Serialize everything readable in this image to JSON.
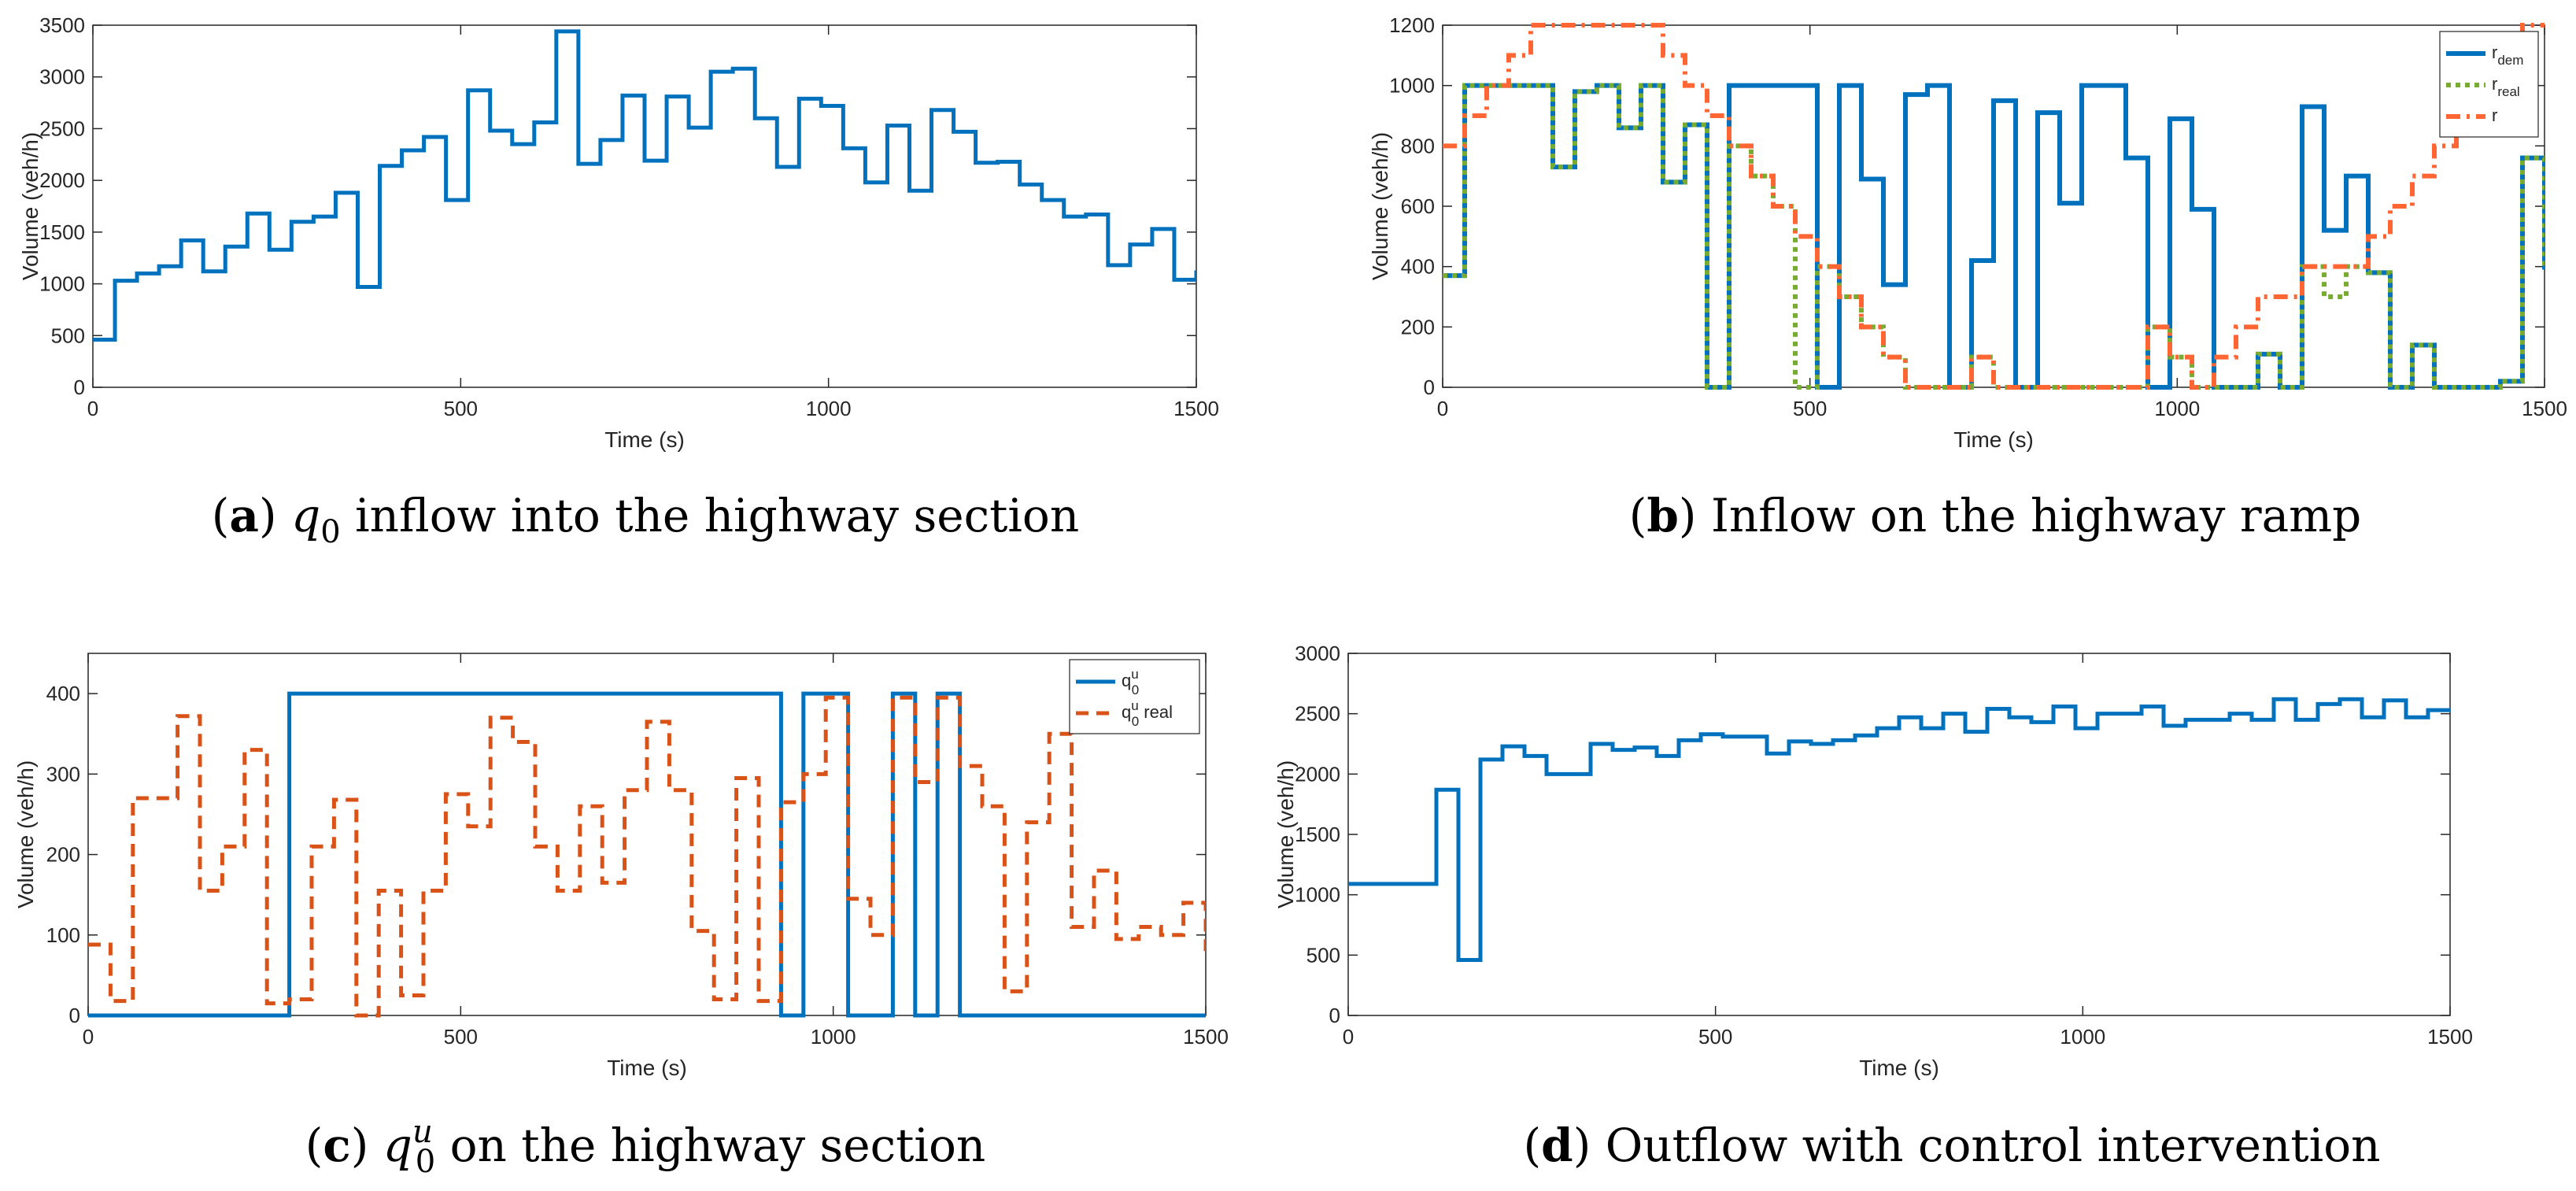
{
  "chart_data": [
    {
      "id": "a",
      "type": "line",
      "caption": {
        "label": "a",
        "math": "q",
        "sub": "0",
        "sup": "",
        "text": " inflow into the highway section"
      },
      "xlabel": "Time (s)",
      "ylabel": "Volume (veh/h)",
      "xlim": [
        0,
        1500
      ],
      "ylim": [
        0,
        3500
      ],
      "xticks": [
        0,
        500,
        1000,
        1500
      ],
      "yticks": [
        0,
        500,
        1000,
        1500,
        2000,
        2500,
        3000,
        3500
      ],
      "legend": null,
      "series": [
        {
          "name": "q0",
          "color": "#0072BD",
          "dash": "solid",
          "width": 5,
          "step": true,
          "x": [
            0,
            30,
            60,
            90,
            120,
            150,
            180,
            210,
            240,
            270,
            300,
            330,
            360,
            390,
            420,
            450,
            480,
            510,
            540,
            570,
            600,
            630,
            660,
            690,
            720,
            750,
            780,
            810,
            840,
            870,
            900,
            930,
            960,
            990,
            1020,
            1050,
            1080,
            1110,
            1140,
            1170,
            1200,
            1230,
            1260,
            1290,
            1320,
            1350,
            1380,
            1410,
            1440,
            1470,
            1500
          ],
          "y": [
            460,
            1030,
            1100,
            1170,
            1420,
            1120,
            1360,
            1680,
            1330,
            1600,
            1650,
            1880,
            970,
            2140,
            2290,
            2420,
            1810,
            2870,
            2480,
            2350,
            2560,
            3440,
            2160,
            2390,
            2820,
            2190,
            2810,
            2510,
            3050,
            3080,
            2600,
            2130,
            2790,
            2720,
            2310,
            1980,
            2530,
            1900,
            2680,
            2470,
            2170,
            2180,
            1960,
            1810,
            1650,
            1670,
            1180,
            1380,
            1530,
            1040,
            1130
          ]
        }
      ]
    },
    {
      "id": "b",
      "type": "line",
      "caption": {
        "label": "b",
        "math": "",
        "sub": "",
        "sup": "",
        "text": "Inflow on the highway ramp"
      },
      "xlabel": "Time (s)",
      "ylabel": "Volume (veh/h)",
      "xlim": [
        0,
        1500
      ],
      "ylim": [
        0,
        1200
      ],
      "xticks": [
        0,
        500,
        1000,
        1500
      ],
      "yticks": [
        0,
        200,
        400,
        600,
        800,
        1000,
        1200
      ],
      "legend": {
        "position": "top-right",
        "entries": [
          {
            "base": "r",
            "sub": "dem"
          },
          {
            "base": "r",
            "sub": "real"
          },
          {
            "base": "r",
            "sub": ""
          }
        ]
      },
      "series": [
        {
          "name": "r_dem",
          "color": "#0072BD",
          "dash": "solid",
          "width": 6,
          "step": true,
          "x": [
            0,
            30,
            60,
            90,
            120,
            150,
            180,
            210,
            240,
            270,
            300,
            330,
            360,
            390,
            420,
            450,
            480,
            510,
            540,
            570,
            600,
            630,
            660,
            690,
            720,
            750,
            780,
            810,
            840,
            870,
            900,
            930,
            960,
            990,
            1020,
            1050,
            1080,
            1110,
            1140,
            1170,
            1200,
            1230,
            1260,
            1290,
            1320,
            1350,
            1380,
            1410,
            1440,
            1470,
            1500
          ],
          "y": [
            370,
            1000,
            1000,
            1000,
            1000,
            730,
            980,
            1000,
            860,
            1000,
            680,
            870,
            0,
            1000,
            1000,
            1000,
            1000,
            0,
            1000,
            690,
            340,
            970,
            1000,
            0,
            420,
            950,
            0,
            910,
            610,
            1000,
            1000,
            760,
            0,
            890,
            590,
            0,
            0,
            110,
            0,
            930,
            520,
            700,
            380,
            0,
            140,
            0,
            0,
            0,
            20,
            760,
            390
          ]
        },
        {
          "name": "r_real",
          "color": "#77AC30",
          "dash": "dot",
          "width": 6,
          "step": true,
          "x": [
            0,
            30,
            60,
            90,
            120,
            150,
            180,
            210,
            240,
            270,
            300,
            330,
            360,
            390,
            420,
            450,
            480,
            510,
            540,
            570,
            600,
            630,
            660,
            690,
            720,
            750,
            780,
            810,
            840,
            870,
            900,
            930,
            960,
            990,
            1020,
            1050,
            1080,
            1110,
            1140,
            1170,
            1200,
            1230,
            1260,
            1290,
            1320,
            1350,
            1380,
            1410,
            1440,
            1470,
            1500
          ],
          "y": [
            370,
            1000,
            1000,
            1000,
            1000,
            730,
            980,
            1000,
            860,
            1000,
            680,
            870,
            0,
            800,
            700,
            600,
            0,
            400,
            300,
            200,
            100,
            0,
            0,
            0,
            100,
            0,
            0,
            0,
            0,
            0,
            0,
            0,
            200,
            100,
            0,
            0,
            0,
            110,
            0,
            400,
            300,
            400,
            380,
            0,
            140,
            0,
            0,
            0,
            20,
            760,
            390
          ]
        },
        {
          "name": "r",
          "color": "#FF6633",
          "dash": "dashdot",
          "width": 6,
          "step": true,
          "x": [
            0,
            30,
            60,
            90,
            120,
            150,
            180,
            210,
            240,
            270,
            300,
            330,
            360,
            390,
            420,
            450,
            480,
            510,
            540,
            570,
            600,
            630,
            660,
            690,
            720,
            750,
            780,
            810,
            840,
            870,
            900,
            930,
            960,
            990,
            1020,
            1050,
            1080,
            1110,
            1140,
            1170,
            1200,
            1230,
            1260,
            1290,
            1320,
            1350,
            1380,
            1410,
            1440,
            1470,
            1500
          ],
          "y": [
            800,
            900,
            1000,
            1100,
            1200,
            1200,
            1200,
            1200,
            1200,
            1200,
            1100,
            1000,
            900,
            800,
            700,
            600,
            500,
            400,
            300,
            200,
            100,
            0,
            0,
            0,
            100,
            0,
            0,
            0,
            0,
            0,
            0,
            0,
            200,
            100,
            0,
            100,
            200,
            300,
            300,
            400,
            400,
            400,
            500,
            600,
            700,
            800,
            900,
            1000,
            1100,
            1200,
            1200
          ]
        }
      ]
    },
    {
      "id": "c",
      "type": "line",
      "caption": {
        "label": "c",
        "math": "q",
        "sub": "0",
        "sup": "u",
        "text": " on the highway section"
      },
      "xlabel": "Time (s)",
      "ylabel": "Volume (veh/h)",
      "xlim": [
        0,
        1500
      ],
      "ylim": [
        0,
        450
      ],
      "xticks": [
        0,
        500,
        1000,
        1500
      ],
      "yticks": [
        0,
        100,
        200,
        300,
        400
      ],
      "legend": {
        "position": "top-right",
        "entries": [
          {
            "base": "q",
            "sub": "0",
            "sup": "u",
            "tail": ""
          },
          {
            "base": "q",
            "sub": "0",
            "sup": "u",
            "tail": " real"
          }
        ]
      },
      "series": [
        {
          "name": "q0u",
          "color": "#0072BD",
          "dash": "solid",
          "width": 5,
          "step": true,
          "x": [
            0,
            270,
            930,
            960,
            1020,
            1080,
            1110,
            1140,
            1170,
            1500
          ],
          "y": [
            0,
            400,
            0,
            400,
            0,
            400,
            0,
            400,
            0,
            0
          ]
        },
        {
          "name": "q0u real",
          "color": "#D95319",
          "dash": "dash",
          "width": 5,
          "step": true,
          "x": [
            0,
            30,
            60,
            90,
            120,
            150,
            180,
            210,
            240,
            270,
            300,
            330,
            360,
            390,
            420,
            450,
            480,
            510,
            540,
            570,
            600,
            630,
            660,
            690,
            720,
            750,
            780,
            810,
            840,
            870,
            900,
            930,
            960,
            990,
            1020,
            1050,
            1080,
            1110,
            1140,
            1170,
            1200,
            1230,
            1260,
            1290,
            1320,
            1350,
            1380,
            1410,
            1440,
            1470,
            1500
          ],
          "y": [
            88,
            18,
            270,
            270,
            372,
            155,
            210,
            330,
            15,
            20,
            210,
            268,
            0,
            155,
            25,
            155,
            275,
            235,
            370,
            340,
            210,
            155,
            260,
            165,
            280,
            365,
            280,
            105,
            20,
            295,
            18,
            265,
            300,
            395,
            145,
            100,
            395,
            290,
            395,
            310,
            260,
            30,
            240,
            350,
            110,
            180,
            95,
            110,
            100,
            140,
            80
          ]
        }
      ]
    },
    {
      "id": "d",
      "type": "line",
      "caption": {
        "label": "d",
        "math": "",
        "sub": "",
        "sup": "",
        "text": "Outflow with control intervention"
      },
      "xlabel": "Time (s)",
      "ylabel": "Volume (veh/h)",
      "xlim": [
        0,
        1500
      ],
      "ylim": [
        0,
        3000
      ],
      "xticks": [
        0,
        500,
        1000,
        1500
      ],
      "yticks": [
        0,
        500,
        1000,
        1500,
        2000,
        2500,
        3000
      ],
      "legend": null,
      "series": [
        {
          "name": "outflow",
          "color": "#0072BD",
          "dash": "solid",
          "width": 5,
          "step": true,
          "x": [
            0,
            120,
            150,
            180,
            210,
            240,
            270,
            300,
            330,
            360,
            390,
            420,
            450,
            480,
            510,
            540,
            570,
            600,
            630,
            660,
            690,
            720,
            750,
            780,
            810,
            840,
            870,
            900,
            930,
            960,
            990,
            1020,
            1050,
            1080,
            1110,
            1140,
            1170,
            1200,
            1230,
            1260,
            1290,
            1320,
            1350,
            1380,
            1410,
            1440,
            1470,
            1500
          ],
          "y": [
            1090,
            1870,
            460,
            2120,
            2230,
            2150,
            2000,
            2000,
            2250,
            2200,
            2220,
            2150,
            2280,
            2330,
            2310,
            2310,
            2170,
            2270,
            2250,
            2280,
            2320,
            2380,
            2470,
            2380,
            2500,
            2350,
            2540,
            2470,
            2430,
            2560,
            2380,
            2500,
            2500,
            2560,
            2400,
            2450,
            2450,
            2500,
            2450,
            2620,
            2450,
            2580,
            2620,
            2470,
            2610,
            2470,
            2530,
            2530
          ]
        }
      ]
    }
  ]
}
